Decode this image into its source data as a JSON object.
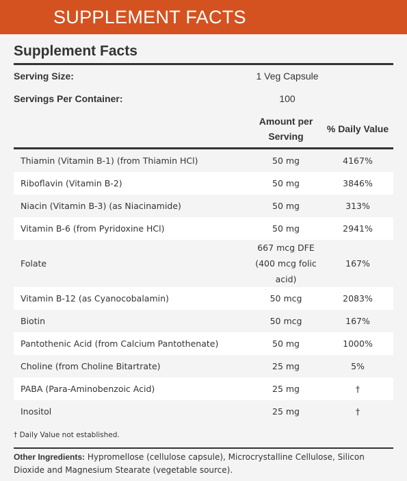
{
  "header": {
    "title": "SUPPLEMENT FACTS"
  },
  "panel": {
    "title": "Supplement Facts",
    "serving_size": {
      "label": "Serving Size:",
      "value": "1 Veg Capsule"
    },
    "servings_per_container": {
      "label": "Servings Per Container:",
      "value": "100"
    },
    "columns": {
      "amount": "Amount per Serving",
      "daily_value": "% Daily Value"
    },
    "rows": [
      [
        "Thiamin (Vitamin B-1) (from Thiamin HCl)",
        "50 mg",
        "4167%"
      ],
      [
        "Riboflavin (Vitamin B-2)",
        "50 mg",
        "3846%"
      ],
      [
        "Niacin (Vitamin B-3) (as Niacinamide)",
        "50 mg",
        "313%"
      ],
      [
        "Vitamin B-6 (from Pyridoxine HCl)",
        "50 mg",
        "2941%"
      ],
      [
        "Folate",
        "667 mcg DFE (400 mcg folic acid)",
        "167%"
      ],
      [
        "Vitamin B-12 (as Cyanocobalamin)",
        "50 mcg",
        "2083%"
      ],
      [
        "Biotin",
        "50 mcg",
        "167%"
      ],
      [
        "Pantothenic Acid (from Calcium Pantothenate)",
        "50 mg",
        "1000%"
      ],
      [
        "Choline (from Choline Bitartrate)",
        "25 mg",
        "5%"
      ],
      [
        "PABA (Para-Aminobenzoic Acid)",
        "25 mg",
        "†"
      ],
      [
        "Inositol",
        "25 mg",
        "†"
      ]
    ],
    "footnote": "† Daily Value not established.",
    "other_ingredients": {
      "label": "Other Ingredients:",
      "text": "Hypromellose (cellulose capsule), Microcrystalline Cellulose, Silicon Dioxide and Magnesium Stearate (vegetable source)."
    }
  }
}
